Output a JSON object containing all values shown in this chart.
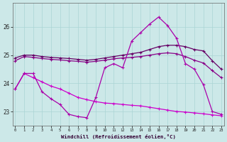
{
  "x": [
    0,
    1,
    2,
    3,
    4,
    5,
    6,
    7,
    8,
    9,
    10,
    11,
    12,
    13,
    14,
    15,
    16,
    17,
    18,
    19,
    20,
    21,
    22,
    23
  ],
  "line_zigzag": [
    23.8,
    24.35,
    24.35,
    23.7,
    23.45,
    23.25,
    22.9,
    22.82,
    22.78,
    23.5,
    24.55,
    24.7,
    24.55,
    25.5,
    25.8,
    26.1,
    26.35,
    26.05,
    25.6,
    24.7,
    24.5,
    23.95,
    23.0,
    22.9
  ],
  "line_top": [
    24.9,
    25.0,
    25.0,
    24.95,
    24.92,
    24.9,
    24.88,
    24.85,
    24.82,
    24.85,
    24.9,
    24.95,
    25.0,
    25.05,
    25.1,
    25.2,
    25.3,
    25.35,
    25.35,
    25.3,
    25.2,
    25.15,
    24.8,
    24.5
  ],
  "line_mid": [
    24.8,
    24.95,
    24.92,
    24.88,
    24.85,
    24.83,
    24.8,
    24.78,
    24.75,
    24.78,
    24.82,
    24.87,
    24.9,
    24.92,
    24.95,
    25.0,
    25.05,
    25.08,
    25.05,
    24.95,
    24.82,
    24.72,
    24.45,
    24.2
  ],
  "line_diag": [
    23.8,
    24.35,
    24.2,
    24.05,
    23.9,
    23.8,
    23.65,
    23.5,
    23.42,
    23.35,
    23.3,
    23.28,
    23.25,
    23.22,
    23.2,
    23.15,
    23.1,
    23.05,
    23.0,
    22.98,
    22.95,
    22.92,
    22.88,
    22.85
  ],
  "bg_color": "#cce8e8",
  "grid_color": "#aad4d4",
  "line_color_zigzag": "#aa00aa",
  "line_color_top": "#660066",
  "line_color_mid": "#880088",
  "line_color_diag": "#cc00cc",
  "xlabel": "Windchill (Refroidissement éolien,°C)",
  "ylim": [
    22.5,
    26.85
  ],
  "xlim": [
    -0.3,
    23.3
  ],
  "yticks": [
    23,
    24,
    25,
    26
  ],
  "xticks": [
    0,
    1,
    2,
    3,
    4,
    5,
    6,
    7,
    8,
    9,
    10,
    11,
    12,
    13,
    14,
    15,
    16,
    17,
    18,
    19,
    20,
    21,
    22,
    23
  ]
}
